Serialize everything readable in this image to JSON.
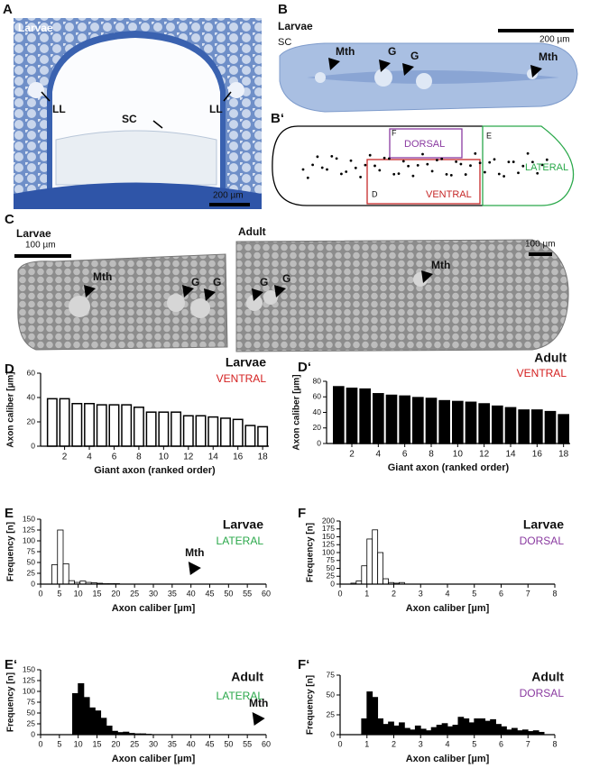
{
  "figure": {
    "panel_a": {
      "label": "A",
      "sample": "Larvae",
      "ll_left": "LL",
      "ll_right": "LL",
      "sc": "SC",
      "scale": "200 µm"
    },
    "panel_b": {
      "label": "B",
      "sample": "Larvae",
      "tissue": "SC",
      "mth_left": "Mth",
      "g1": "G",
      "g2": "G",
      "mth_right": "Mth",
      "scale": "200 µm"
    },
    "panel_b2": {
      "label": "B‘",
      "dorsal": "DORSAL",
      "f": "F",
      "e": "E",
      "lateral": "LATERAL",
      "d": "D",
      "ventral": "VENTRAL"
    },
    "panel_c": {
      "label": "C",
      "larvae": "Larvae",
      "larvae_scale": "100 µm",
      "larvae_mth": "Mth",
      "larvae_g1": "G",
      "larvae_g2": "G",
      "adult": "Adult",
      "adult_scale": "100 µm",
      "adult_g1": "G",
      "adult_g2": "G",
      "adult_mth": "Mth"
    }
  },
  "chart_data": [
    {
      "type": "bar",
      "panel": "D",
      "title": "Larvae",
      "subtitle": "VENTRAL",
      "subtitle_color": "#d42020",
      "x_label": "Giant axon (ranked order)",
      "y_label": "Axon caliber [µm]",
      "categories": [
        null,
        2,
        null,
        4,
        null,
        6,
        null,
        8,
        null,
        10,
        null,
        12,
        null,
        14,
        null,
        16,
        null,
        18
      ],
      "values": [
        39,
        39,
        35,
        35,
        34,
        34,
        34,
        32,
        28,
        28,
        28,
        25,
        25,
        24,
        23,
        22,
        17,
        16
      ],
      "color": "#ffffff",
      "edge_color": "#000000",
      "ylim": [
        0,
        60
      ],
      "yticks": [
        0,
        20,
        40,
        60
      ]
    },
    {
      "type": "bar",
      "panel": "D‘",
      "title": "Adult",
      "subtitle": "VENTRAL",
      "subtitle_color": "#d42020",
      "x_label": "Giant axon (ranked order)",
      "y_label": "Axon caliber [µm]",
      "categories": [
        null,
        2,
        null,
        4,
        null,
        6,
        null,
        8,
        null,
        10,
        null,
        12,
        null,
        14,
        null,
        16,
        null,
        18
      ],
      "values": [
        73,
        71,
        70,
        64,
        62,
        61,
        59,
        58,
        55,
        54,
        53,
        51,
        48,
        46,
        43,
        43,
        41,
        37
      ],
      "color": "#000000",
      "edge_color": "#000000",
      "ylim": [
        0,
        80
      ],
      "yticks": [
        0,
        20,
        40,
        60,
        80
      ]
    },
    {
      "type": "histogram",
      "panel": "E",
      "title": "Larvae",
      "subtitle": "LATERAL",
      "subtitle_color": "#2aa84a",
      "x_label": "Axon caliber [µm]",
      "y_label": "Frequency [n]",
      "bins": [
        3,
        4.5,
        6,
        7.5,
        9,
        10.5,
        12,
        13.5,
        15,
        16.5,
        18,
        19.5,
        21
      ],
      "values": [
        45,
        125,
        47,
        8,
        4,
        7,
        4,
        3,
        2,
        1,
        1,
        1
      ],
      "color": "#ffffff",
      "edge_color": "#000000",
      "xlim": [
        0,
        60
      ],
      "xticks": [
        0,
        5,
        10,
        15,
        20,
        25,
        30,
        35,
        40,
        45,
        50,
        55,
        60
      ],
      "ylim": [
        0,
        150
      ],
      "yticks": [
        0,
        25,
        50,
        75,
        100,
        125,
        150
      ],
      "annotation": {
        "text": "Mth",
        "x": 41
      }
    },
    {
      "type": "histogram",
      "panel": "F",
      "title": "Larvae",
      "subtitle": "DORSAL",
      "subtitle_color": "#8a3aa0",
      "x_label": "Axon caliber [µm]",
      "y_label": "Frequency [n]",
      "bins": [
        0.4,
        0.6,
        0.8,
        1.0,
        1.2,
        1.4,
        1.6,
        1.8,
        2.0,
        2.2,
        2.4
      ],
      "values": [
        3,
        10,
        58,
        143,
        172,
        100,
        17,
        5,
        3,
        5
      ],
      "color": "#ffffff",
      "edge_color": "#000000",
      "xlim": [
        0,
        8
      ],
      "xticks": [
        0,
        1,
        2,
        3,
        4,
        5,
        6,
        7,
        8
      ],
      "ylim": [
        0,
        200
      ],
      "yticks": [
        0,
        25,
        50,
        75,
        100,
        125,
        150,
        175,
        200
      ]
    },
    {
      "type": "histogram",
      "panel": "E‘",
      "title": "Adult",
      "subtitle": "LATERAL",
      "subtitle_color": "#2aa84a",
      "x_label": "Axon caliber [µm]",
      "y_label": "Frequency [n]",
      "bins": [
        8.5,
        10,
        11.5,
        13,
        14.5,
        16,
        17.5,
        19,
        20.5,
        22,
        23.5,
        25,
        26.5,
        28,
        29.5
      ],
      "values": [
        95,
        118,
        86,
        62,
        55,
        38,
        20,
        8,
        5,
        6,
        3,
        2,
        2,
        1
      ],
      "color": "#000000",
      "edge_color": "#000000",
      "xlim": [
        0,
        60
      ],
      "xticks": [
        0,
        5,
        10,
        15,
        20,
        25,
        30,
        35,
        40,
        45,
        50,
        55,
        60
      ],
      "ylim": [
        0,
        150
      ],
      "yticks": [
        0,
        25,
        50,
        75,
        100,
        125,
        150
      ],
      "annotation": {
        "text": "Mth",
        "x": 58
      }
    },
    {
      "type": "histogram",
      "panel": "F‘",
      "title": "Adult",
      "subtitle": "DORSAL",
      "subtitle_color": "#8a3aa0",
      "x_label": "Axon caliber [µm]",
      "y_label": "Frequency [n]",
      "bins": [
        0.8,
        1.0,
        1.2,
        1.4,
        1.6,
        1.8,
        2.0,
        2.2,
        2.4,
        2.6,
        2.8,
        3.0,
        3.2,
        3.4,
        3.6,
        3.8,
        4.0,
        4.2,
        4.4,
        4.6,
        4.8,
        5.0,
        5.2,
        5.4,
        5.6,
        5.8,
        6.0,
        6.2,
        6.4,
        6.6,
        6.8,
        7.0,
        7.2,
        7.4,
        7.6
      ],
      "values": [
        20,
        54,
        47,
        20,
        13,
        16,
        11,
        15,
        8,
        6,
        11,
        7,
        5,
        9,
        12,
        14,
        10,
        12,
        22,
        20,
        15,
        20,
        20,
        17,
        19,
        13,
        10,
        6,
        8,
        5,
        6,
        4,
        5,
        3
      ],
      "color": "#000000",
      "edge_color": "#000000",
      "xlim": [
        0,
        8
      ],
      "xticks": [
        0,
        1,
        2,
        3,
        4,
        5,
        6,
        7,
        8
      ],
      "ylim": [
        0,
        75
      ],
      "yticks": [
        0,
        25,
        50,
        75
      ]
    }
  ]
}
